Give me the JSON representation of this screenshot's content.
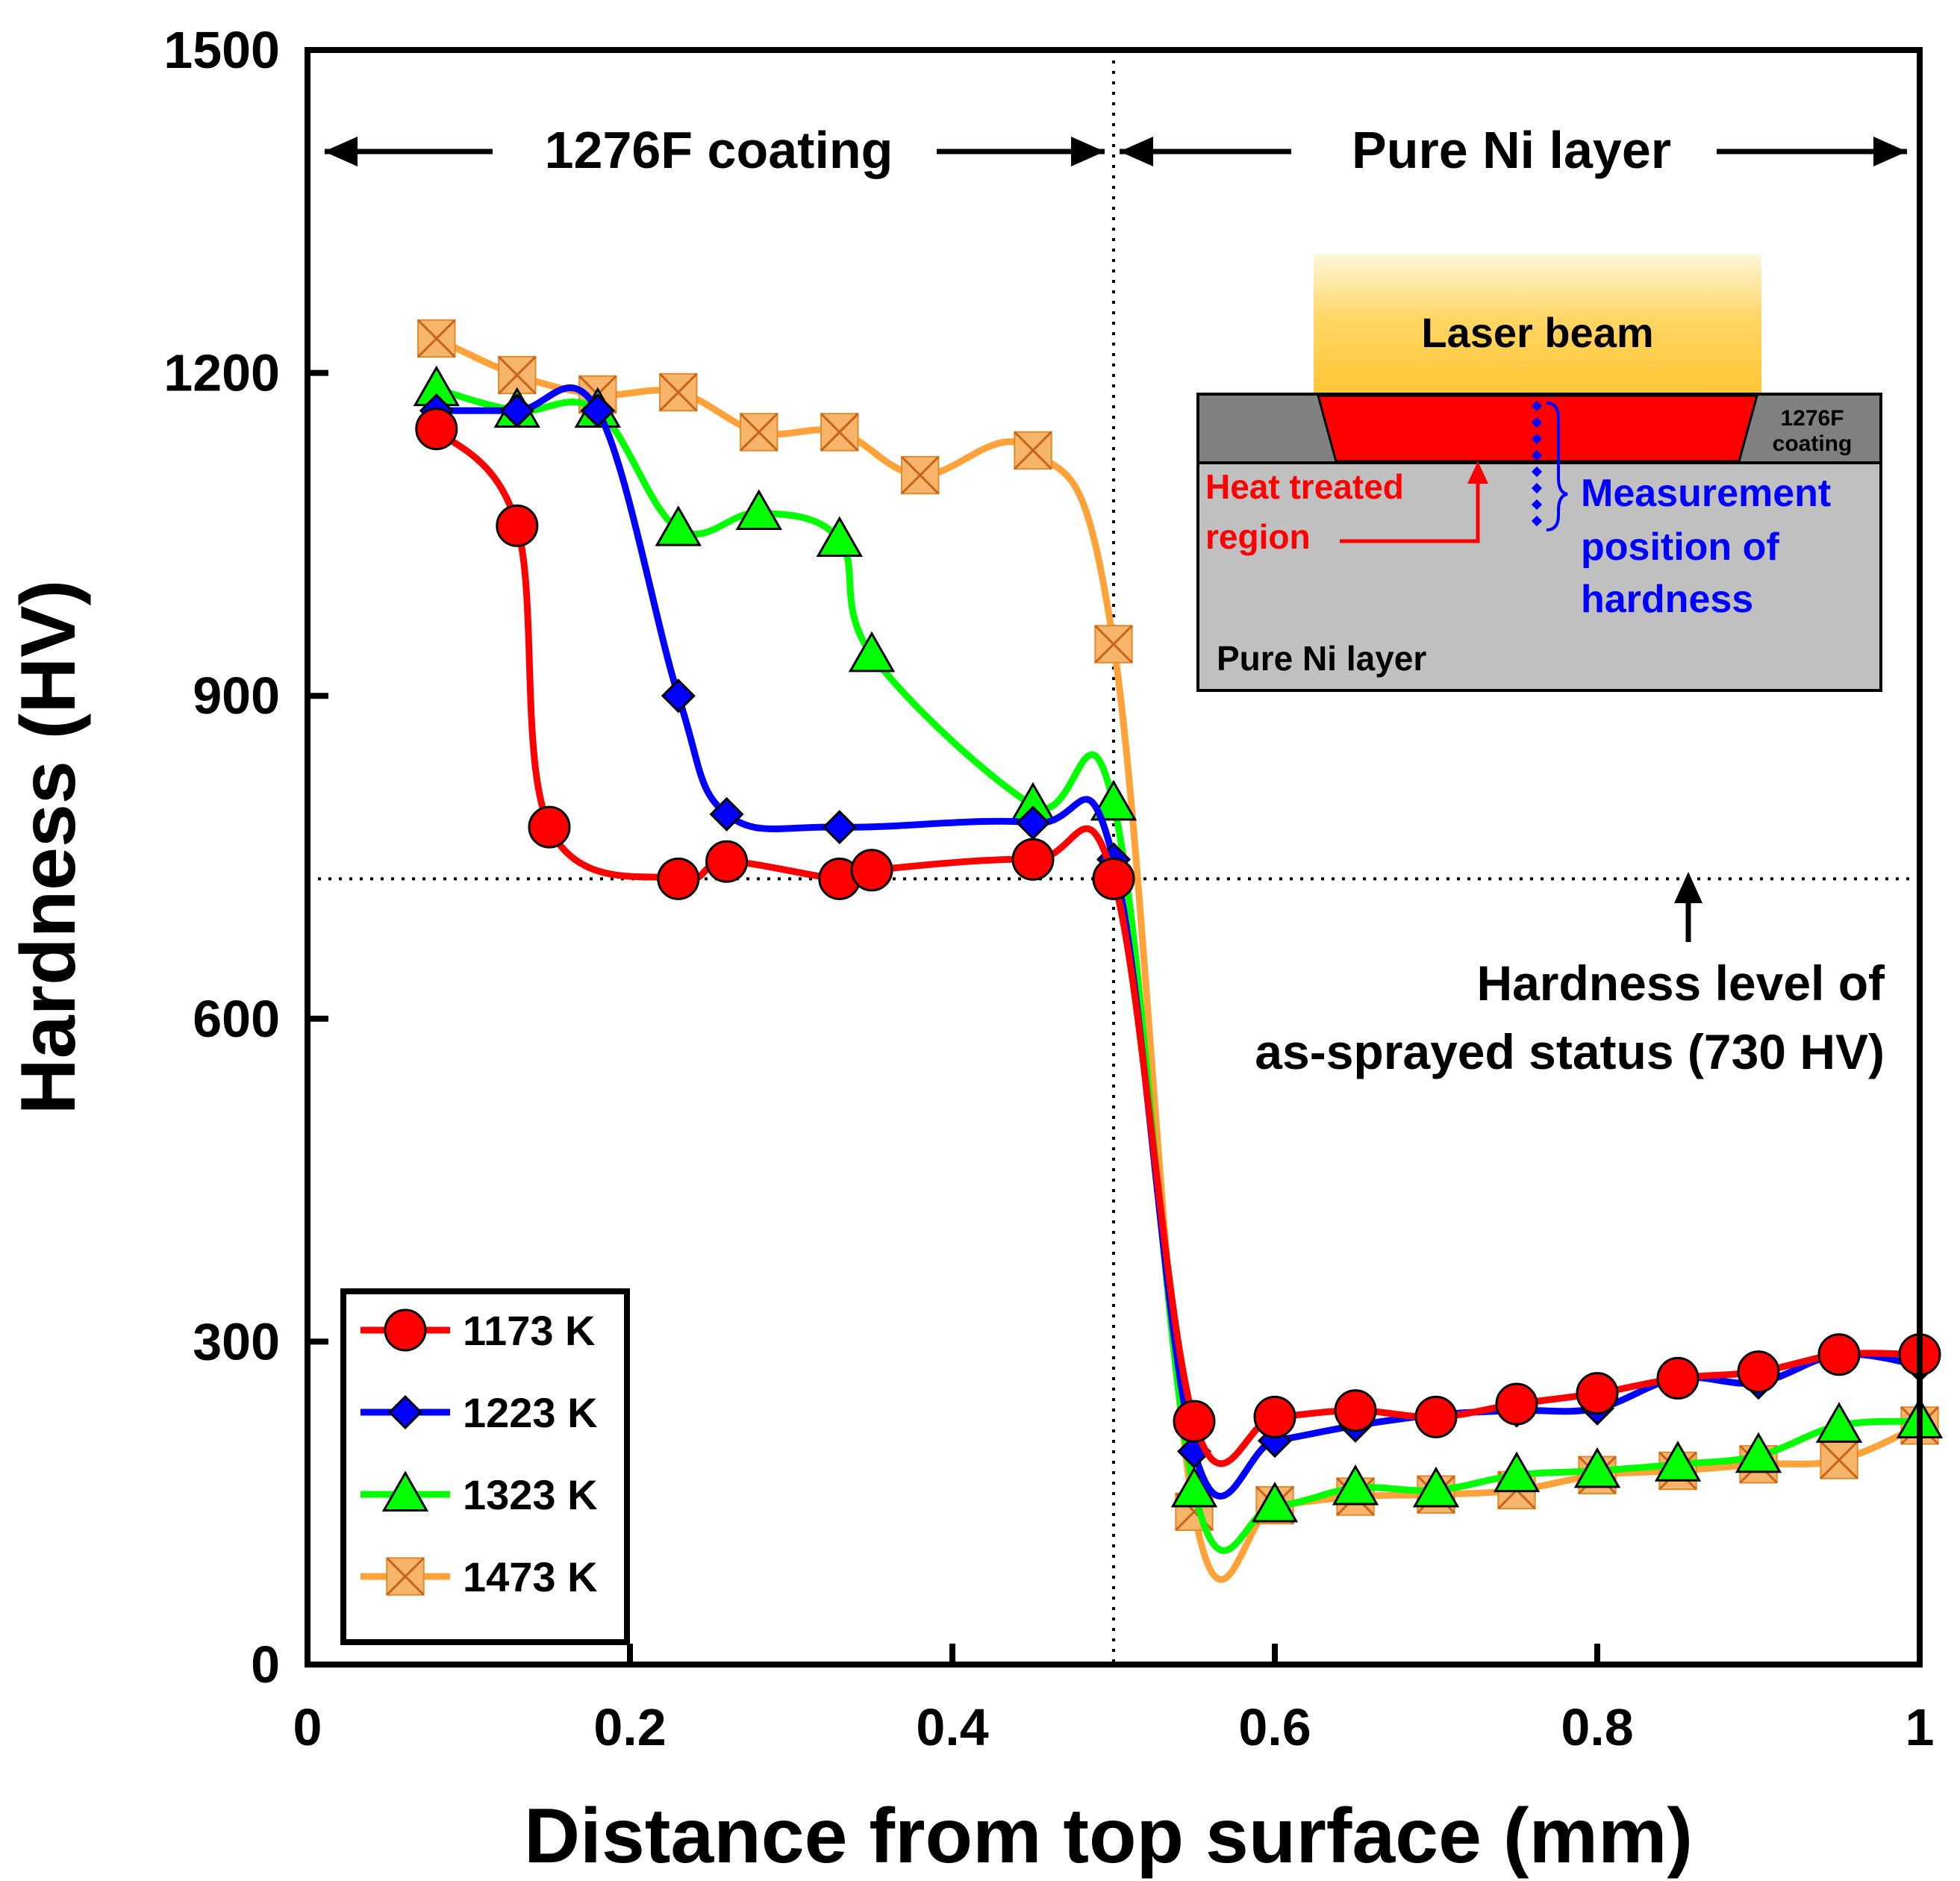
{
  "chart_data": {
    "type": "line",
    "title": "",
    "xlabel": "Distance from top surface (mm)",
    "ylabel": "Hardness (HV)",
    "xlim": [
      0,
      1
    ],
    "ylim": [
      0,
      1500
    ],
    "xticks": [
      0,
      0.2,
      0.4,
      0.6,
      0.8,
      1
    ],
    "xtick_labels": [
      "0",
      "0.2",
      "0.4",
      "0.6",
      "0.8",
      "1"
    ],
    "yticks": [
      0,
      300,
      600,
      900,
      1200,
      1500
    ],
    "ytick_labels": [
      "0",
      "300",
      "600",
      "900",
      "1200",
      "1500"
    ],
    "grid": false,
    "legend_position": "bottom-left",
    "series": [
      {
        "name": "1173 K",
        "color": "#ff0000",
        "marker": "circle",
        "marker_fill": "#ff0000",
        "x": [
          0.08,
          0.13,
          0.15,
          0.23,
          0.26,
          0.33,
          0.35,
          0.45,
          0.5,
          0.55,
          0.6,
          0.65,
          0.7,
          0.75,
          0.8,
          0.85,
          0.9,
          0.95,
          1.0
        ],
        "y": [
          1148,
          1058,
          778,
          730,
          746,
          730,
          738,
          748,
          730,
          226,
          230,
          236,
          230,
          242,
          252,
          266,
          272,
          288,
          288
        ]
      },
      {
        "name": "1223 K",
        "color": "#0000ff",
        "marker": "diamond",
        "marker_fill": "#0000ff",
        "x": [
          0.08,
          0.13,
          0.18,
          0.23,
          0.26,
          0.33,
          0.45,
          0.5,
          0.55,
          0.6,
          0.65,
          0.7,
          0.75,
          0.8,
          0.85,
          0.9,
          0.95,
          1.0
        ],
        "y": [
          1165,
          1165,
          1165,
          900,
          790,
          778,
          782,
          748,
          198,
          208,
          222,
          232,
          236,
          238,
          266,
          262,
          288,
          278
        ]
      },
      {
        "name": "1323 K",
        "color": "#00ff00",
        "marker": "triangle",
        "marker_fill": "#00ff00",
        "x": [
          0.08,
          0.13,
          0.18,
          0.23,
          0.28,
          0.33,
          0.35,
          0.45,
          0.5,
          0.55,
          0.6,
          0.65,
          0.7,
          0.75,
          0.8,
          0.85,
          0.9,
          0.95,
          1.0
        ],
        "y": [
          1185,
          1165,
          1165,
          1055,
          1070,
          1045,
          938,
          798,
          800,
          162,
          148,
          164,
          162,
          176,
          180,
          186,
          194,
          222,
          226
        ]
      },
      {
        "name": "1473 K",
        "color": "#ffa23a",
        "marker": "x-square",
        "marker_fill": "#f7b56b",
        "x": [
          0.08,
          0.13,
          0.18,
          0.23,
          0.28,
          0.33,
          0.38,
          0.45,
          0.5,
          0.55,
          0.6,
          0.65,
          0.7,
          0.75,
          0.8,
          0.85,
          0.9,
          0.95,
          1.0
        ],
        "y": [
          1232,
          1198,
          1180,
          1182,
          1145,
          1145,
          1105,
          1128,
          948,
          142,
          148,
          156,
          158,
          162,
          176,
          180,
          186,
          190,
          222
        ]
      }
    ],
    "reference_lines": {
      "vertical_x": 0.5,
      "horizontal_y": 730
    },
    "annotations": {
      "coating_region": "1276F coating",
      "ni_region": "Pure Ni layer",
      "hardness_level_line1": "Hardness level of",
      "hardness_level_line2": "as-sprayed status (730 HV)"
    },
    "inset": {
      "laser_beam": "Laser beam",
      "coating_label_line1": "1276F",
      "coating_label_line2": "coating",
      "heat_treated_line1": "Heat treated",
      "heat_treated_line2": "region",
      "measurement_line1": "Measurement",
      "measurement_line2": "position of",
      "measurement_line3": "hardness",
      "ni_layer": "Pure Ni layer"
    }
  }
}
